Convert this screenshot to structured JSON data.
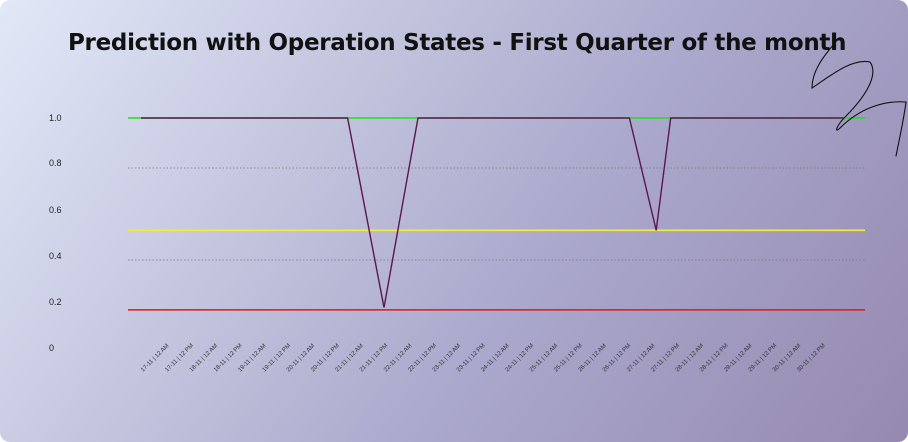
{
  "chart_data": {
    "type": "line",
    "title": "Prediction with Operation States - First Quarter of the month",
    "xlabel": "",
    "ylabel": "",
    "ylim": [
      0,
      1.0
    ],
    "yticks": [
      "1.0",
      "0.8",
      "0.6",
      "0.4",
      "0.2",
      "0"
    ],
    "grid": "horizontal dotted lines at 0.8 and 0.4",
    "categories": [
      "17-11 | 12 AM",
      "17-11 | 12 PM",
      "18-11 | 12 AM",
      "18-11 | 12 PM",
      "19-11 | 12 AM",
      "19-11 | 12 PM",
      "20-11 | 12 AM",
      "20-11 | 12 PM",
      "21-11 | 12 AM",
      "21-11 | 12 PM",
      "22-11 | 12 AM",
      "22-11 | 12 PM",
      "23-11 | 12 AM",
      "23-11 | 12 PM",
      "24-11 | 12 AM",
      "24-11 | 12 PM",
      "25-11 | 12 AM",
      "25-11 | 12 PM",
      "26-11 | 12 AM",
      "26-11 | 12 PM",
      "27-11 | 12 AM",
      "27-11 | 12 PM",
      "28-11 | 12 AM",
      "28-11 | 12 PM",
      "29-11 | 12 AM",
      "29-11 | 12 PM",
      "30-11 | 12 AM",
      "30-11 | 12 PM"
    ],
    "reference_lines": [
      {
        "value": 1.0,
        "color": "#22dd22"
      },
      {
        "value": 0.52,
        "color": "#f2ec3a"
      },
      {
        "value": 0.18,
        "color": "#e01818"
      }
    ],
    "series": [
      {
        "color": "#5a1650",
        "points": [
          [
            0,
            1.0
          ],
          [
            8.5,
            1.0
          ],
          [
            10,
            0.19
          ],
          [
            11.4,
            1.0
          ],
          [
            20.1,
            1.0
          ],
          [
            21.2,
            0.52
          ],
          [
            21.8,
            1.0
          ],
          [
            28.9,
            1.0
          ]
        ]
      }
    ]
  },
  "annotation": {
    "kind": "handwritten-scribble",
    "color": "#111111"
  }
}
